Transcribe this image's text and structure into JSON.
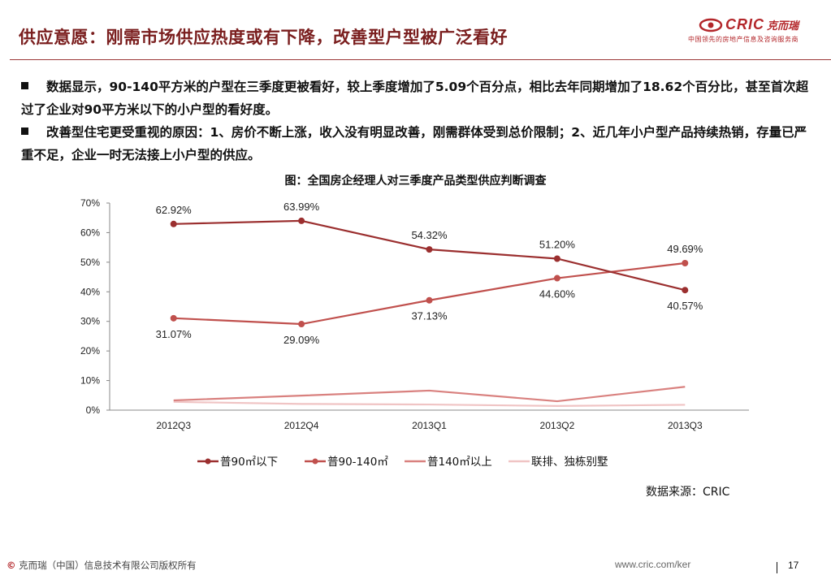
{
  "header": {
    "title": "供应意愿：刚需市场供应热度或有下降，改善型户型被广泛看好",
    "logo_text": "CRIC",
    "logo_cn": "克而瑞",
    "logo_tagline": "中国领先的房地产信息及咨询服务商"
  },
  "bullets": [
    "数据显示，90-140平方米的户型在三季度更被看好，较上季度增加了5.09个百分点，相比去年同期增加了18.62个百分比，甚至首次超过了企业对90平方米以下的小户型的看好度。",
    "改善型住宅更受重视的原因：1、房价不断上涨，收入没有明显改善，刚需群体受到总价限制；2、近几年小户型产品持续热销，存量已严重不足，企业一时无法接上小户型的供应。"
  ],
  "chart_caption": "图：全国房企经理人对三季度产品类型供应判断调查",
  "chart_data": {
    "type": "line",
    "title": "图：全国房企经理人对三季度产品类型供应判断调查",
    "categories": [
      "2012Q3",
      "2012Q4",
      "2013Q1",
      "2013Q2",
      "2013Q3"
    ],
    "ylim": [
      0,
      70
    ],
    "yticks": [
      0,
      10,
      20,
      30,
      40,
      50,
      60,
      70
    ],
    "ytick_labels": [
      "0%",
      "10%",
      "20%",
      "30%",
      "40%",
      "50%",
      "60%",
      "70%"
    ],
    "grid": false,
    "legend": "bottom",
    "series": [
      {
        "name": "普90㎡以下",
        "values": [
          62.92,
          63.99,
          54.32,
          51.2,
          40.57
        ],
        "labels": [
          "62.92%",
          "63.99%",
          "54.32%",
          "51.20%",
          "40.57%"
        ],
        "color": "#9b2f2f",
        "markers": true,
        "label_pos": [
          "above",
          "above",
          "above",
          "above",
          "below"
        ]
      },
      {
        "name": "普90-140㎡",
        "values": [
          31.07,
          29.09,
          37.13,
          44.6,
          49.69
        ],
        "labels": [
          "31.07%",
          "29.09%",
          "37.13%",
          "44.60%",
          "49.69%"
        ],
        "color": "#c0504d",
        "markers": true,
        "label_pos": [
          "below",
          "below",
          "below",
          "below",
          "above"
        ]
      },
      {
        "name": "普140㎡以上",
        "values": [
          3.3,
          4.9,
          6.6,
          3.0,
          7.9
        ],
        "color": "#d9817f",
        "markers": false
      },
      {
        "name": "联排、独栋别墅",
        "values": [
          2.8,
          2.1,
          1.9,
          1.4,
          1.8
        ],
        "color": "#f0c4c4",
        "markers": false
      }
    ]
  },
  "source": "数据来源：CRIC",
  "footer": {
    "copyright_symbol": "©",
    "copyright": "克而瑞（中国）信息技术有限公司版权所有",
    "url": "www.cric.com/ker",
    "page": "17"
  }
}
